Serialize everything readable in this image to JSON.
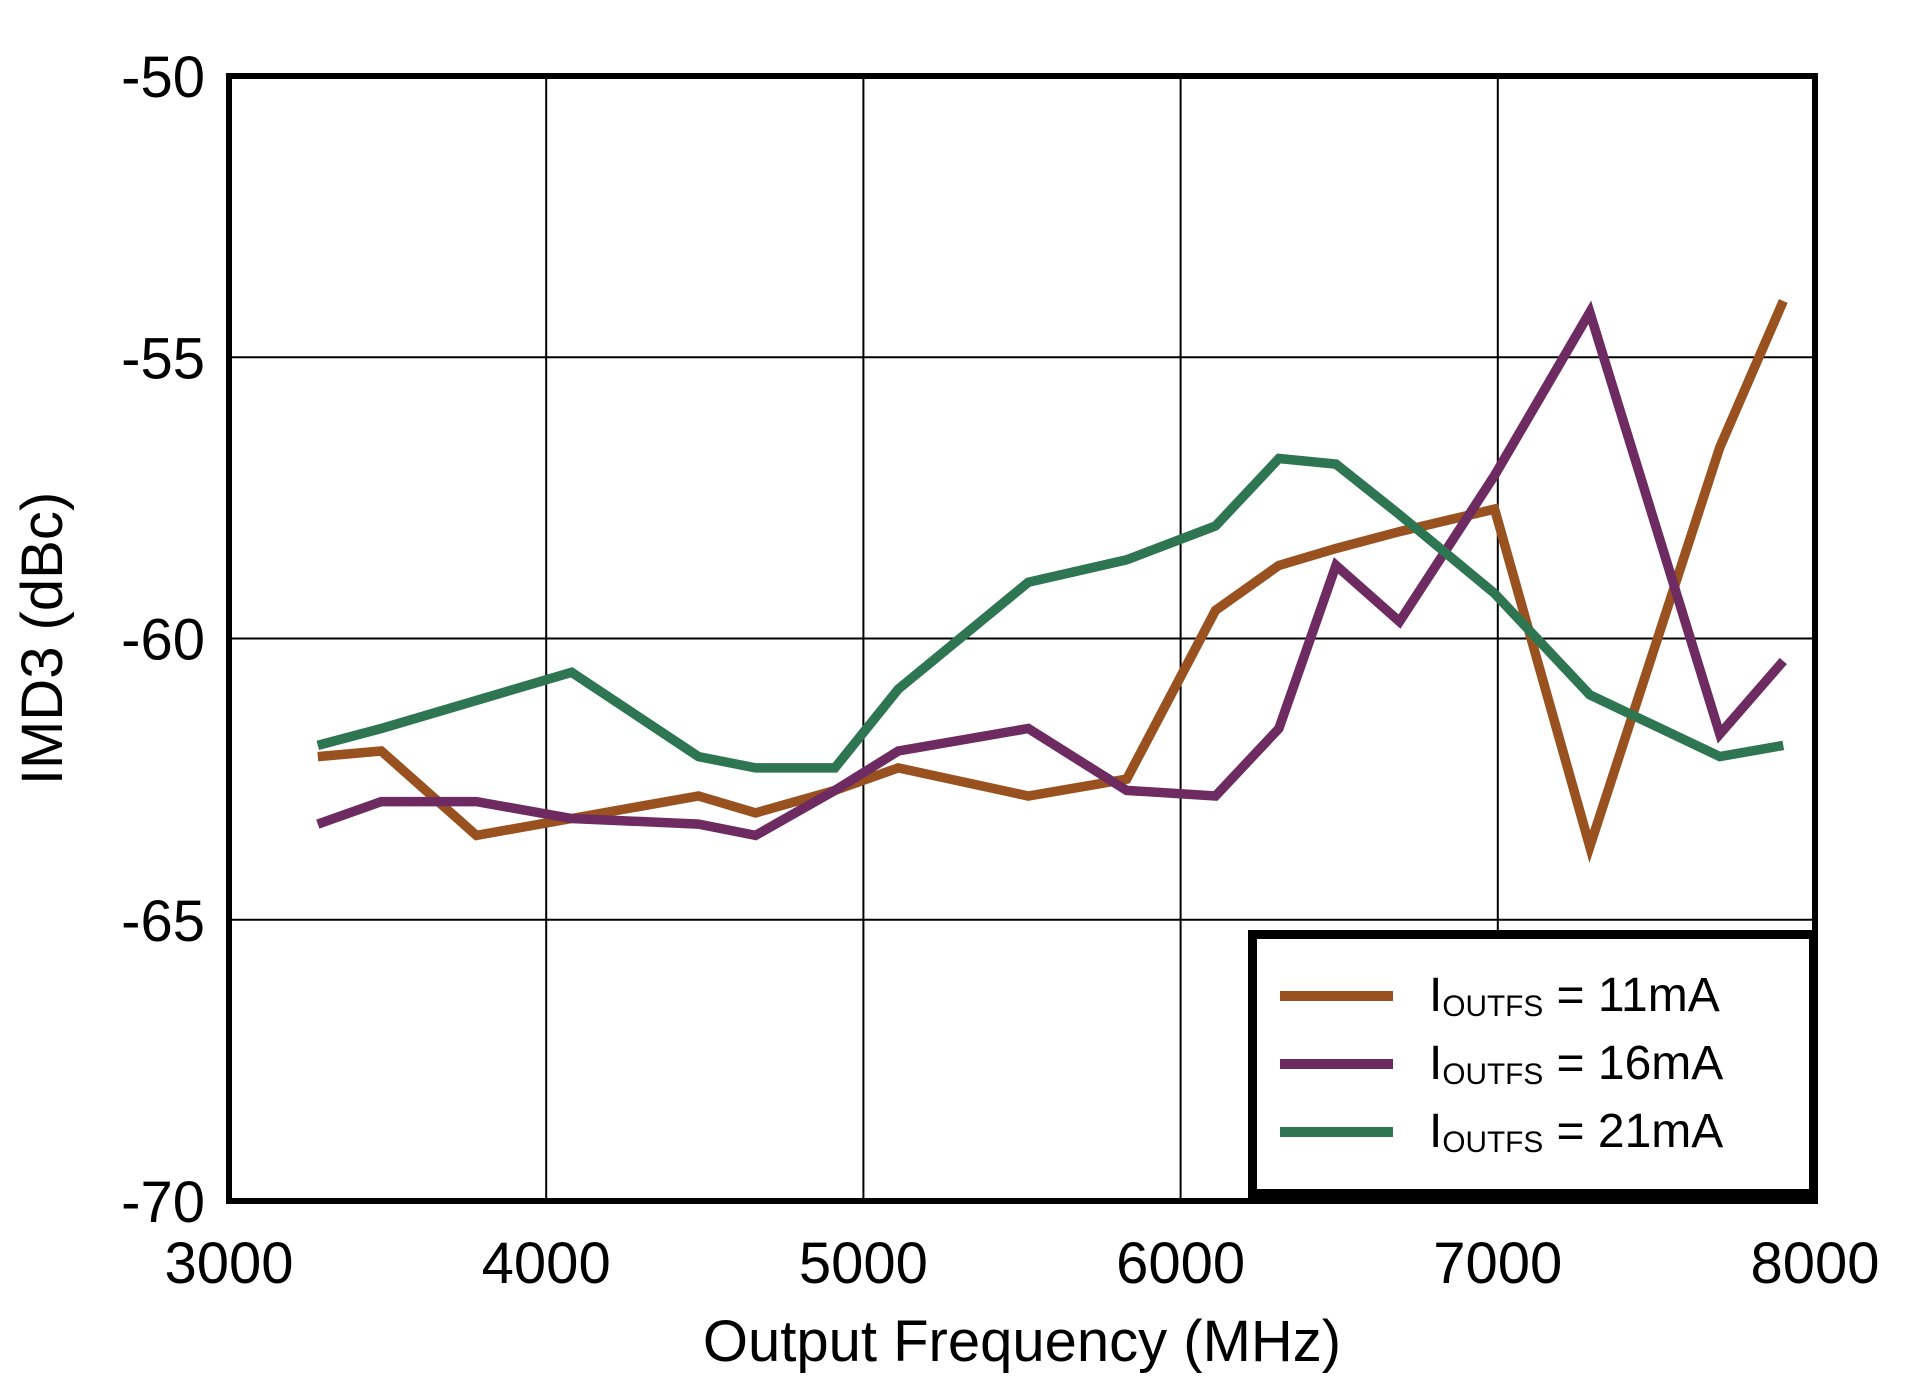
{
  "chart_data": {
    "type": "line",
    "title": "",
    "xlabel": "Output Frequency (MHz)",
    "ylabel": "IMD3 (dBc)",
    "xlim": [
      3000,
      8000
    ],
    "ylim": [
      -70,
      -50
    ],
    "x_ticks": [
      3000,
      4000,
      5000,
      6000,
      7000,
      8000
    ],
    "y_ticks": [
      -50,
      -55,
      -60,
      -65,
      -70
    ],
    "grid": true,
    "legend_position": "bottom-right",
    "axis_color": "#000000",
    "grid_color": "#000000",
    "x": [
      3280,
      3480,
      3780,
      4080,
      4480,
      4660,
      4910,
      5110,
      5520,
      5830,
      6110,
      6310,
      6490,
      6690,
      6990,
      7290,
      7700,
      7900
    ],
    "series": [
      {
        "name": "IOUTFS = 11mA",
        "label_base": "I",
        "label_sub": "OUTFS",
        "label_rest": " = 11mA",
        "color": "#99521F",
        "values": [
          -62.1,
          -62.0,
          -63.5,
          -63.2,
          -62.8,
          -63.1,
          -62.7,
          -62.3,
          -62.8,
          -62.5,
          -59.5,
          -58.7,
          -58.4,
          -58.1,
          -57.7,
          -63.7,
          -56.6,
          -54.0
        ]
      },
      {
        "name": "IOUTFS = 16mA",
        "label_base": "I",
        "label_sub": "OUTFS",
        "label_rest": " = 16mA",
        "color": "#6E2B62",
        "values": [
          -63.3,
          -62.9,
          -62.9,
          -63.2,
          -63.3,
          -63.5,
          -62.7,
          -62.0,
          -61.6,
          -62.7,
          -62.8,
          -61.6,
          -58.7,
          -59.7,
          -57.1,
          -54.2,
          -61.7,
          -60.4
        ]
      },
      {
        "name": "IOUTFS = 21mA",
        "label_base": "I",
        "label_sub": "OUTFS",
        "label_rest": " = 21mA",
        "color": "#2E7552",
        "values": [
          -61.9,
          -61.6,
          -61.1,
          -60.6,
          -62.1,
          -62.3,
          -62.3,
          -60.9,
          -59.0,
          -58.6,
          -58.0,
          -56.8,
          -56.9,
          -57.8,
          -59.2,
          -61.0,
          -62.1,
          -61.9
        ]
      }
    ]
  }
}
